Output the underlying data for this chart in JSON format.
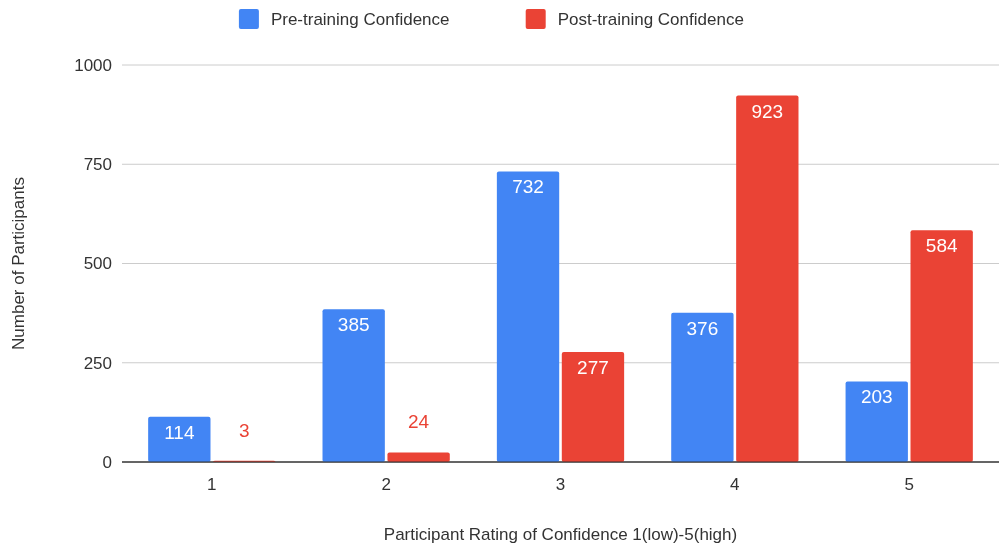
{
  "chart_data": {
    "type": "bar",
    "xlabel": "Participant Rating of Confidence 1(low)-5(high)",
    "ylabel": "Number of Participants",
    "categories": [
      "1",
      "2",
      "3",
      "4",
      "5"
    ],
    "series": [
      {
        "name": "Pre-training Confidence",
        "color": "#4285f4",
        "values": [
          114,
          385,
          732,
          376,
          203
        ]
      },
      {
        "name": "Post-training Confidence",
        "color": "#ea4335",
        "values": [
          3,
          24,
          277,
          923,
          584
        ]
      }
    ],
    "ylim": [
      0,
      1000
    ],
    "yticks": [
      0,
      250,
      500,
      750,
      1000
    ],
    "grid": "y",
    "legend": "top",
    "data_labels": true
  }
}
